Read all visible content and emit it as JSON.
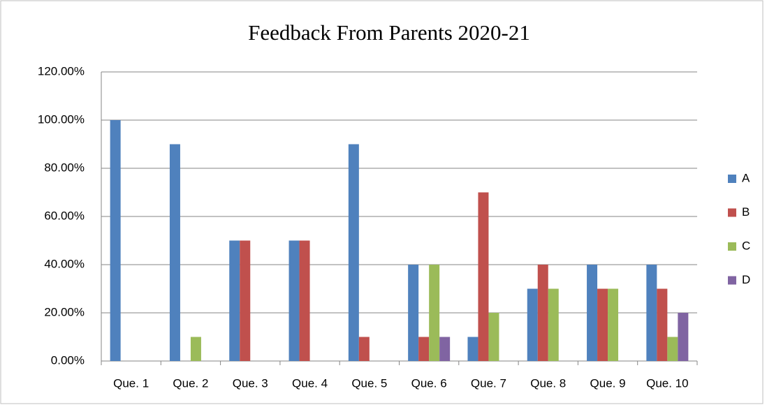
{
  "chart_data": {
    "type": "bar",
    "title": "Feedback From Parents 2020-21",
    "categories": [
      "Que. 1",
      "Que. 2",
      "Que. 3",
      "Que. 4",
      "Que. 5",
      "Que. 6",
      "Que. 7",
      "Que. 8",
      "Que. 9",
      "Que. 10"
    ],
    "series": [
      {
        "name": "A",
        "color": "#4f81bd",
        "values": [
          100,
          90,
          50,
          50,
          90,
          40,
          10,
          30,
          40,
          40
        ]
      },
      {
        "name": "B",
        "color": "#c0504d",
        "values": [
          0,
          0,
          50,
          50,
          10,
          10,
          70,
          40,
          30,
          30
        ]
      },
      {
        "name": "C",
        "color": "#9bbb59",
        "values": [
          0,
          10,
          0,
          0,
          0,
          40,
          20,
          30,
          30,
          10
        ]
      },
      {
        "name": "D",
        "color": "#8064a2",
        "values": [
          0,
          0,
          0,
          0,
          0,
          10,
          0,
          0,
          0,
          20
        ]
      }
    ],
    "ylim": [
      0,
      120
    ],
    "yticks": [
      {
        "value": 0,
        "label": "0.00%"
      },
      {
        "value": 20,
        "label": "20.00%"
      },
      {
        "value": 40,
        "label": "40.00%"
      },
      {
        "value": 60,
        "label": "60.00%"
      },
      {
        "value": 80,
        "label": "80.00%"
      },
      {
        "value": 100,
        "label": "100.00%"
      },
      {
        "value": 120,
        "label": "120.00%"
      }
    ],
    "grid": true,
    "legend": "right"
  }
}
